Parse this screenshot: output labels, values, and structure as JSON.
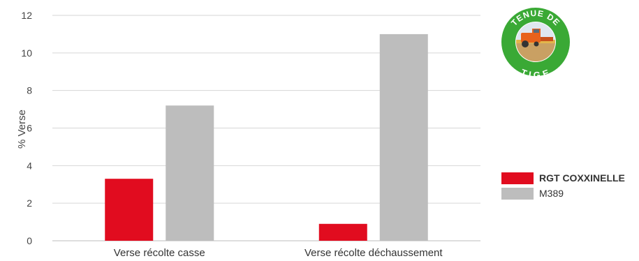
{
  "chart_data": {
    "type": "bar",
    "categories": [
      "Verse récolte casse",
      "Verse récolte déchaussement"
    ],
    "series": [
      {
        "name": "RGT COXXINELLE",
        "color": "#e10c1f",
        "values": [
          3.3,
          0.9
        ]
      },
      {
        "name": "M389",
        "color": "#bdbdbd",
        "values": [
          7.2,
          11.0
        ]
      }
    ],
    "ylabel": "% Verse",
    "ylim": [
      0,
      12
    ],
    "yticks": [
      0,
      2,
      4,
      6,
      8,
      10,
      12
    ],
    "grid": true,
    "legend_position": "right"
  },
  "badge": {
    "top_text": "TENUE DE",
    "bottom_text": "TIGE",
    "icon": "harvester-icon",
    "ring_color": "#3aa935"
  }
}
